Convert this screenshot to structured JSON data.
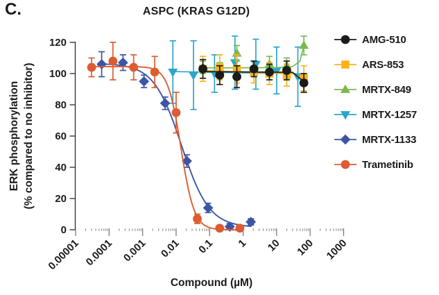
{
  "panel_label": "C.",
  "title": "ASPC (KRAS G12D)",
  "axes": {
    "y_label_line1": "ERK phosphorylation",
    "y_label_line2": "(% compared to no inhibitor)",
    "x_label": "Compound (µM)",
    "y_ticks": [
      0,
      20,
      40,
      60,
      80,
      100,
      120
    ],
    "x_ticks": [
      "0.00001",
      "0.0001",
      "0.001",
      "0.01",
      "0.1",
      "1",
      "10",
      "100",
      "1000"
    ]
  },
  "chart_data": {
    "type": "scatter",
    "title": "ASPC (KRAS G12D)",
    "xlabel": "Compound (µM)",
    "ylabel": "ERK phosphorylation (% compared to no inhibitor)",
    "xscale": "log",
    "xlim": [
      1e-05,
      1000
    ],
    "ylim": [
      0,
      120
    ],
    "grid": false,
    "legend_position": "right",
    "series": [
      {
        "name": "AMG-510",
        "color": "#1b1b1b",
        "marker": "circle",
        "x": [
          0.063,
          0.2,
          0.65,
          2.1,
          6.1,
          20,
          65
        ],
        "y": [
          103,
          99,
          98,
          103,
          101,
          102,
          94
        ],
        "err": [
          6,
          6,
          7,
          5,
          5,
          6,
          6
        ],
        "line": [
          [
            0.055,
            101.3
          ],
          [
            30,
            100.8
          ],
          [
            68,
            94.5
          ]
        ]
      },
      {
        "name": "ARS-853",
        "color": "#fbb417",
        "marker": "square",
        "x": [
          0.063,
          0.2,
          0.65,
          2.1,
          6.1,
          20,
          65
        ],
        "y": [
          103,
          104,
          103,
          101,
          100,
          99,
          97
        ],
        "err": [
          8,
          8,
          9,
          7,
          7,
          7,
          8
        ],
        "line": [
          [
            0.055,
            102
          ],
          [
            30,
            99.8
          ],
          [
            68,
            96.8
          ]
        ]
      },
      {
        "name": "MRTX-849",
        "color": "#7cb950",
        "marker": "triangle-up",
        "x": [
          0.063,
          0.2,
          0.65,
          2.1,
          6.1,
          20,
          65
        ],
        "y": [
          104,
          103,
          113,
          104,
          106,
          105,
          118
        ],
        "err": [
          4,
          4,
          5,
          4,
          5,
          5,
          6
        ],
        "line": [
          [
            0.048,
            103.6
          ],
          [
            10,
            103.8
          ],
          [
            30,
            104.5
          ],
          [
            50,
            108
          ],
          [
            64,
            117.5
          ]
        ]
      },
      {
        "name": "MRTX-1257",
        "color": "#28a7cb",
        "marker": "triangle-down",
        "x": [
          0.008,
          0.033,
          0.14,
          0.57,
          2.4,
          10,
          43
        ],
        "y": [
          101,
          99,
          100,
          107,
          106,
          102,
          98
        ],
        "err": [
          20,
          22,
          12,
          17,
          16,
          15,
          19
        ],
        "line": [
          [
            0.0075,
            101.3
          ],
          [
            45,
            99.8
          ]
        ]
      },
      {
        "name": "MRTX-1133",
        "color": "#3c55a5",
        "marker": "diamond",
        "x": [
          6e-05,
          0.00026,
          0.0011,
          0.0047,
          0.021,
          0.09,
          0.4,
          1.7
        ],
        "y": [
          106,
          107,
          95,
          81,
          44,
          14,
          2,
          5
        ],
        "err": [
          8,
          5,
          4,
          4,
          4,
          3,
          2,
          2
        ],
        "fit": {
          "top": 106.5,
          "bottom": 1.5,
          "ec50": 0.0145,
          "hill": 1.05,
          "range": [
            6e-05,
            1.7
          ]
        }
      },
      {
        "name": "Trametinib",
        "color": "#dd5c31",
        "marker": "circle",
        "x": [
          3e-05,
          0.00013,
          0.00054,
          0.0023,
          0.01,
          0.043,
          0.2,
          0.8
        ],
        "y": [
          104,
          108,
          104,
          101,
          75,
          7,
          1,
          1
        ],
        "err": [
          6,
          12,
          8,
          10,
          13,
          3,
          1,
          1
        ],
        "fit": {
          "top": 104.5,
          "bottom": 0,
          "ec50": 0.014,
          "hill": 2.2,
          "range": [
            2.8e-05,
            0.85
          ]
        }
      }
    ]
  }
}
